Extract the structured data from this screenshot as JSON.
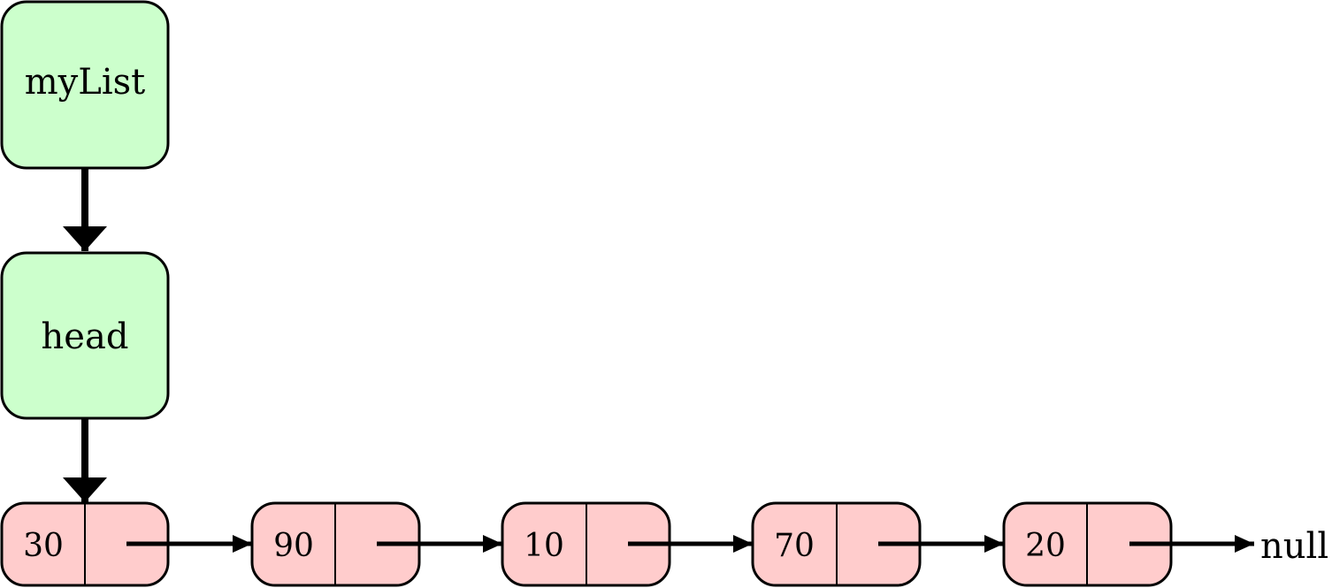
{
  "colors": {
    "var_box_fill": "#ccffcc",
    "node_fill": "#ffcccc",
    "stroke": "#000000"
  },
  "variable": {
    "label": "myList"
  },
  "head": {
    "label": "head"
  },
  "nodes": [
    {
      "value": "30"
    },
    {
      "value": "90"
    },
    {
      "value": "10"
    },
    {
      "value": "70"
    },
    {
      "value": "20"
    }
  ],
  "terminator": {
    "label": "null"
  }
}
